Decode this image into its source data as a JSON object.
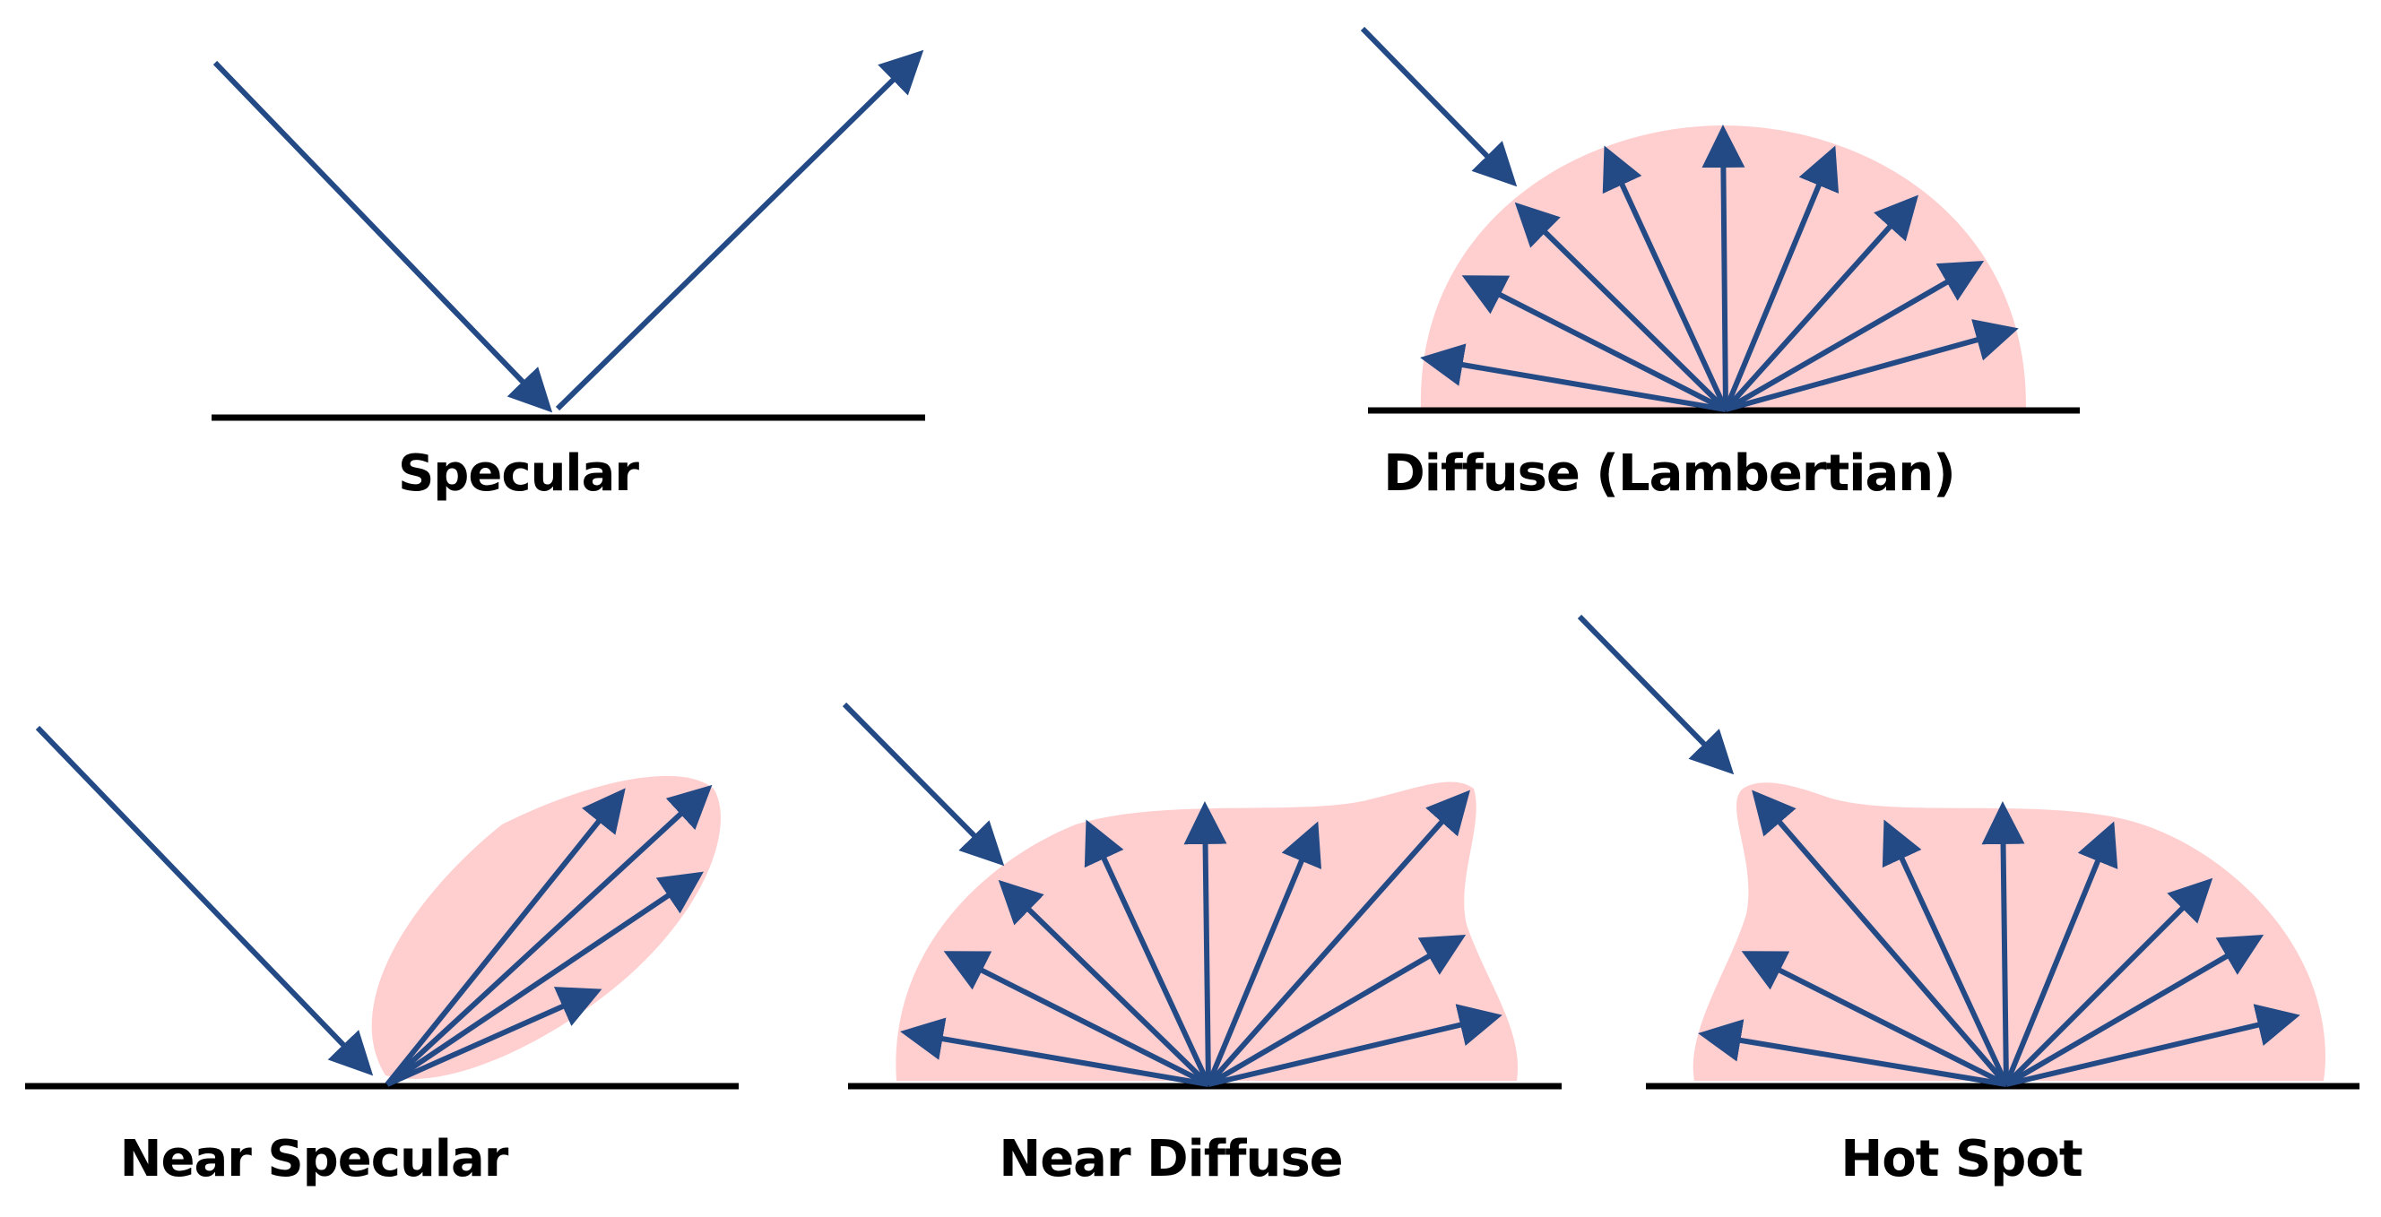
{
  "colors": {
    "arrow": "#244a86",
    "lobe": "#ffcfd0",
    "surface": "#000000",
    "background": "#ffffff"
  },
  "panels": [
    {
      "key": "specular",
      "label": "Specular"
    },
    {
      "key": "diffuse",
      "label": "Diffuse (Lambertian)"
    },
    {
      "key": "near_specular",
      "label": "Near Specular"
    },
    {
      "key": "near_diffuse",
      "label": "Near Diffuse"
    },
    {
      "key": "hot_spot",
      "label": "Hot Spot"
    }
  ]
}
